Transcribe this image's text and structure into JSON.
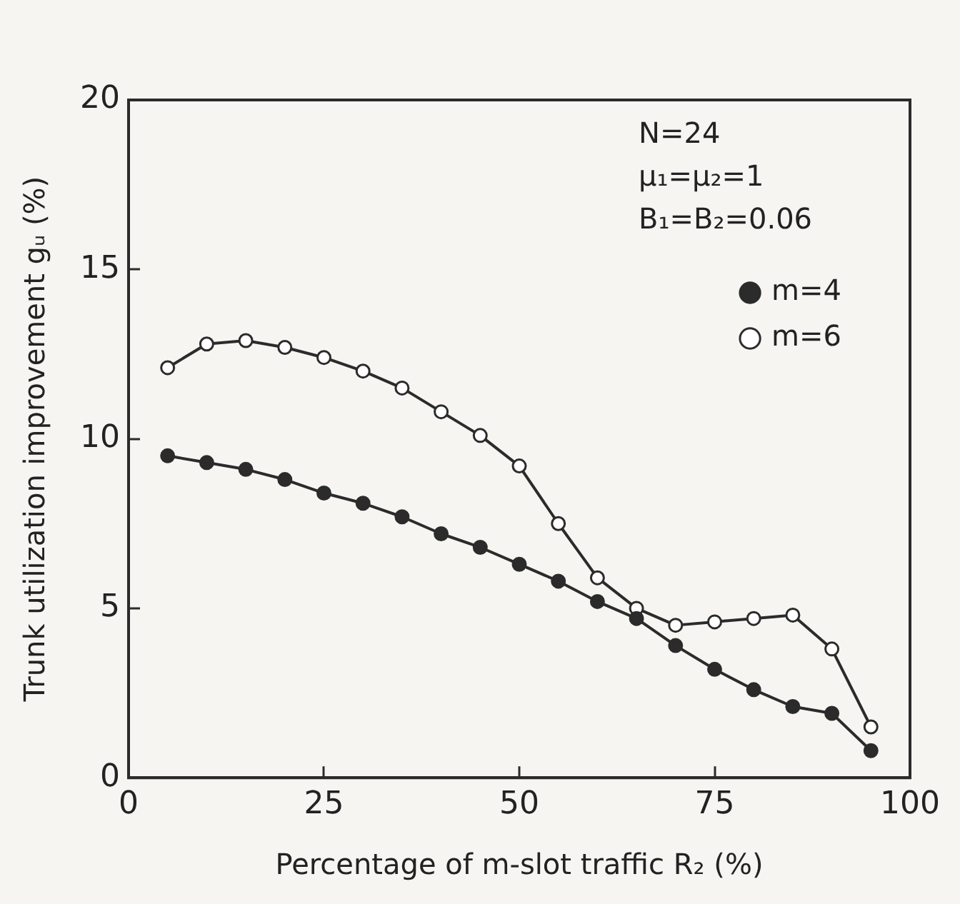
{
  "chart_data": {
    "type": "line",
    "xlabel": "Percentage of m-slot traffic R₂ (%)",
    "ylabel": "Trunk utilization improvement gᵤ (%)",
    "x": [
      5,
      10,
      15,
      20,
      25,
      30,
      35,
      40,
      45,
      50,
      55,
      60,
      65,
      70,
      75,
      80,
      85,
      90,
      95
    ],
    "series": [
      {
        "name": "m=4",
        "color": "#2b2b2b",
        "values": [
          9.5,
          9.3,
          9.1,
          8.8,
          8.4,
          8.1,
          7.7,
          7.2,
          6.8,
          6.3,
          5.8,
          5.2,
          4.7,
          3.9,
          3.2,
          2.6,
          2.1,
          1.9,
          0.8
        ]
      },
      {
        "name": "m=6",
        "color": "#2b2b2b",
        "colors": [
          "#ffffff",
          "#ffffff",
          "#ffffff",
          "#ffffff",
          "#ffffff",
          "#ffffff",
          "#ffffff",
          "#ffffff",
          "#ffffff",
          "#ffffff",
          "#ffffff",
          "#ffffff",
          "#ffffff",
          "#ffffff",
          "#ffffff",
          "#ffffff",
          "#ffffff",
          "#ffffff",
          "#ffffff"
        ],
        "values": [
          12.1,
          12.8,
          12.9,
          12.7,
          12.4,
          12.0,
          11.5,
          10.8,
          10.1,
          9.2,
          7.5,
          5.9,
          5.0,
          4.5,
          4.6,
          4.7,
          4.8,
          3.8,
          1.5
        ]
      }
    ],
    "xlim": [
      0,
      100
    ],
    "xticks": [
      0,
      25,
      50,
      75,
      100
    ],
    "ylim": [
      0,
      20
    ],
    "yticks": [
      0,
      5,
      10,
      15,
      20
    ],
    "annotations": [
      "N=24",
      "μ₁=μ₂=1",
      "B₁=B₂=0.06"
    ],
    "grid": false,
    "legend": "top right",
    "marker": "circle",
    "line_style": "solid"
  }
}
